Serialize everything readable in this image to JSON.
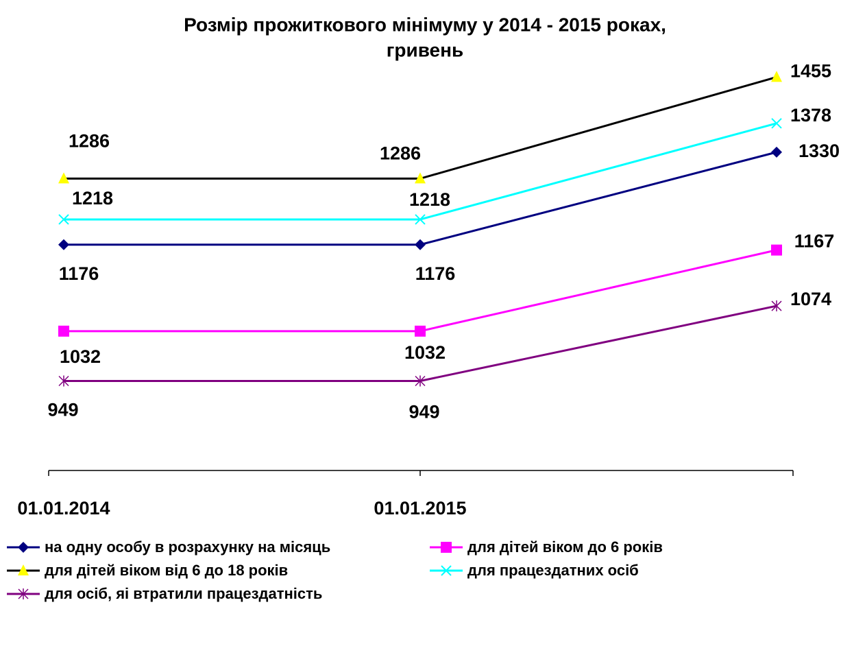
{
  "chart_data": {
    "type": "line",
    "title": [
      "Розмір прожиткового мінімуму у 2014 - 2015 роках,",
      "гривень"
    ],
    "categories": [
      "01.01.2014",
      "01.01.2015",
      null
    ],
    "ylim": [
      800,
      1500
    ],
    "series": [
      {
        "name": "на одну особу в розрахунку на місяць",
        "color": "#000080",
        "marker": "diamond",
        "marker_color": "#000080",
        "values": [
          1176,
          1176,
          1330
        ]
      },
      {
        "name": "для дітей віком до 6 років",
        "color": "#ff00ff",
        "marker": "square",
        "marker_color": "#ff00ff",
        "values": [
          1032,
          1032,
          1167
        ]
      },
      {
        "name": "для дітей віком від 6 до 18 років",
        "color": "#000000",
        "marker": "triangle",
        "marker_color": "#ffff00",
        "values": [
          1286,
          1286,
          1455
        ]
      },
      {
        "name": "для працездатних осіб",
        "color": "#00ffff",
        "marker": "x",
        "marker_color": "#00ffff",
        "values": [
          1218,
          1218,
          1378
        ]
      },
      {
        "name": "для осіб, яі втратили працездатність",
        "color": "#800080",
        "marker": "star",
        "marker_color": "#800080",
        "values": [
          949,
          949,
          1074
        ]
      }
    ]
  }
}
